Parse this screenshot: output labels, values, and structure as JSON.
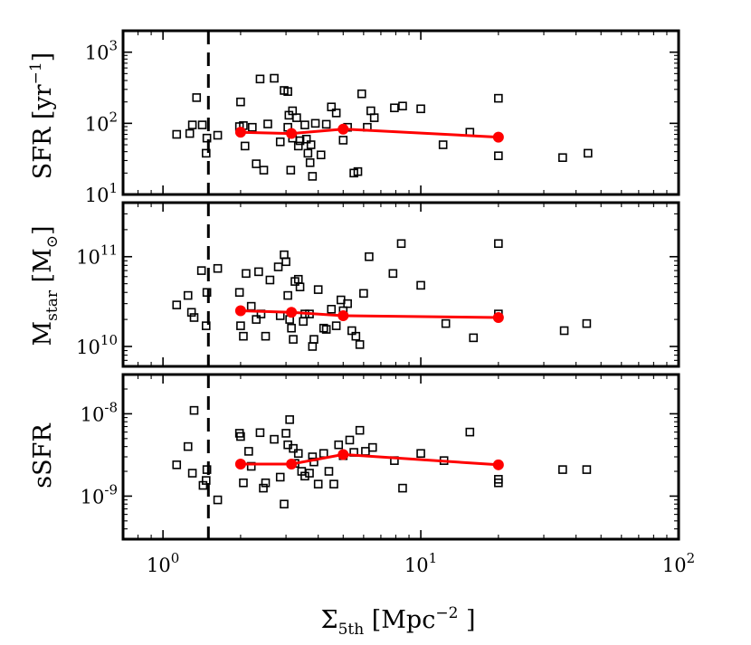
{
  "colors": {
    "median": "#ff0000",
    "points": "#000000"
  },
  "chart_data": {
    "type": "scatter",
    "x_scale": "log",
    "xlim": [
      0.7,
      100
    ],
    "xlabel_main": "Σ",
    "xlabel_sub": "5th",
    "xlabel_unit": " [Mpc",
    "xlabel_exp": "−2",
    "xlabel_close": " ]",
    "xticks": [
      {
        "value": 1,
        "base": "10",
        "exp": "0"
      },
      {
        "value": 10,
        "base": "10",
        "exp": "1"
      },
      {
        "value": 100,
        "base": "10",
        "exp": "2"
      }
    ],
    "threshold_x": 1.5,
    "median_x": [
      2.0,
      3.15,
      5.0,
      20.0
    ],
    "panels": [
      {
        "id": "sfr",
        "ylabel_main": "SFR [yr",
        "ylabel_exp": "−1",
        "ylabel_close": "]",
        "ylim": [
          10,
          2000
        ],
        "yticks": [
          {
            "value": 10,
            "base": "10",
            "exp": "1"
          },
          {
            "value": 100,
            "base": "10",
            "exp": "2"
          },
          {
            "value": 1000,
            "base": "10",
            "exp": "3"
          }
        ],
        "points": [
          [
            1.13,
            70
          ],
          [
            1.27,
            72
          ],
          [
            1.3,
            95
          ],
          [
            1.35,
            230
          ],
          [
            1.42,
            95
          ],
          [
            1.48,
            62
          ],
          [
            1.47,
            38
          ],
          [
            1.63,
            68
          ],
          [
            1.98,
            90
          ],
          [
            2.0,
            200
          ],
          [
            2.05,
            93
          ],
          [
            2.08,
            48
          ],
          [
            2.22,
            88
          ],
          [
            2.38,
            420
          ],
          [
            2.3,
            27
          ],
          [
            2.46,
            22
          ],
          [
            2.55,
            98
          ],
          [
            2.7,
            430
          ],
          [
            2.85,
            55
          ],
          [
            2.95,
            290
          ],
          [
            3.05,
            280
          ],
          [
            3.05,
            88
          ],
          [
            3.08,
            130
          ],
          [
            3.13,
            22
          ],
          [
            3.18,
            62
          ],
          [
            3.18,
            150
          ],
          [
            3.3,
            120
          ],
          [
            3.35,
            48
          ],
          [
            3.4,
            57
          ],
          [
            3.55,
            95
          ],
          [
            3.6,
            60
          ],
          [
            3.65,
            38
          ],
          [
            3.72,
            28
          ],
          [
            3.75,
            50
          ],
          [
            3.8,
            18
          ],
          [
            3.9,
            100
          ],
          [
            4.1,
            36
          ],
          [
            4.3,
            97
          ],
          [
            4.5,
            170
          ],
          [
            4.7,
            140
          ],
          [
            5.0,
            58
          ],
          [
            5.2,
            88
          ],
          [
            5.5,
            20
          ],
          [
            5.7,
            21
          ],
          [
            5.9,
            260
          ],
          [
            6.2,
            88
          ],
          [
            6.4,
            150
          ],
          [
            6.6,
            120
          ],
          [
            7.9,
            165
          ],
          [
            8.5,
            175
          ],
          [
            10.0,
            160
          ],
          [
            12.2,
            50
          ],
          [
            15.5,
            75
          ],
          [
            20.0,
            225
          ],
          [
            20.0,
            35
          ],
          [
            35.5,
            33
          ],
          [
            44.5,
            38
          ]
        ],
        "median_y": [
          75,
          72,
          83,
          64
        ]
      },
      {
        "id": "mstar",
        "ylabel_main": "M",
        "ylabel_sub": "star",
        "ylabel_close": " [M",
        "ylabel_sun": "⊙",
        "ylabel_end": "]",
        "ylim": [
          6000000000,
          400000000000
        ],
        "yticks": [
          {
            "value": 10000000000,
            "base": "10",
            "exp": "10"
          },
          {
            "value": 100000000000,
            "base": "10",
            "exp": "11"
          }
        ],
        "points": [
          [
            1.13,
            29000000000.0
          ],
          [
            1.25,
            37000000000.0
          ],
          [
            1.29,
            24000000000.0
          ],
          [
            1.32,
            21000000000.0
          ],
          [
            1.41,
            70000000000.0
          ],
          [
            1.48,
            40000000000.0
          ],
          [
            1.47,
            17000000000.0
          ],
          [
            1.63,
            74000000000.0
          ],
          [
            1.98,
            40000000000.0
          ],
          [
            2.0,
            17000000000.0
          ],
          [
            2.05,
            13000000000.0
          ],
          [
            2.1,
            65000000000.0
          ],
          [
            2.2,
            28000000000.0
          ],
          [
            2.3,
            20000000000.0
          ],
          [
            2.35,
            68000000000.0
          ],
          [
            2.4,
            23000000000.0
          ],
          [
            2.5,
            13000000000.0
          ],
          [
            2.6,
            55000000000.0
          ],
          [
            2.8,
            77000000000.0
          ],
          [
            2.85,
            22000000000.0
          ],
          [
            2.95,
            105000000000.0
          ],
          [
            3.0,
            88000000000.0
          ],
          [
            3.05,
            37000000000.0
          ],
          [
            3.1,
            20000000000.0
          ],
          [
            3.15,
            16000000000.0
          ],
          [
            3.2,
            12000000000.0
          ],
          [
            3.25,
            53000000000.0
          ],
          [
            3.35,
            56000000000.0
          ],
          [
            3.4,
            46000000000.0
          ],
          [
            3.5,
            19000000000.0
          ],
          [
            3.55,
            23000000000.0
          ],
          [
            3.7,
            23000000000.0
          ],
          [
            3.8,
            10000000000.0
          ],
          [
            3.85,
            12000000000.0
          ],
          [
            4.0,
            43000000000.0
          ],
          [
            4.2,
            16000000000.0
          ],
          [
            4.3,
            15500000000.0
          ],
          [
            4.5,
            26000000000.0
          ],
          [
            4.7,
            17000000000.0
          ],
          [
            4.9,
            33000000000.0
          ],
          [
            5.0,
            25000000000.0
          ],
          [
            5.2,
            30000000000.0
          ],
          [
            5.4,
            15000000000.0
          ],
          [
            5.6,
            13000000000.0
          ],
          [
            5.8,
            10500000000.0
          ],
          [
            6.0,
            39000000000.0
          ],
          [
            6.3,
            100000000000.0
          ],
          [
            7.8,
            65000000000.0
          ],
          [
            8.4,
            140000000000.0
          ],
          [
            10.0,
            48000000000.0
          ],
          [
            12.5,
            18000000000.0
          ],
          [
            16.0,
            12500000000.0
          ],
          [
            20.0,
            140000000000.0
          ],
          [
            20.0,
            23000000000.0
          ],
          [
            36.0,
            15000000000.0
          ],
          [
            44.0,
            18000000000.0
          ]
        ],
        "median_y": [
          25000000000.0,
          24000000000.0,
          22000000000.0,
          21000000000.0
        ]
      },
      {
        "id": "ssfr",
        "ylabel_main": "sSFR",
        "ylim": [
          3e-10,
          3e-08
        ],
        "yticks": [
          {
            "value": 1e-09,
            "base": "10",
            "exp": "-9"
          },
          {
            "value": 1e-08,
            "base": "10",
            "exp": "-8"
          }
        ],
        "points": [
          [
            1.13,
            2.4e-09
          ],
          [
            1.25,
            4e-09
          ],
          [
            1.3,
            1.9e-09
          ],
          [
            1.32,
            1.1e-08
          ],
          [
            1.43,
            1.35e-09
          ],
          [
            1.48,
            2.1e-09
          ],
          [
            1.47,
            1.55e-09
          ],
          [
            1.63,
            9e-10
          ],
          [
            1.98,
            5.8e-09
          ],
          [
            2.0,
            5.3e-09
          ],
          [
            2.05,
            1.45e-09
          ],
          [
            2.15,
            3.5e-09
          ],
          [
            2.2,
            2.3e-09
          ],
          [
            2.38,
            5.9e-09
          ],
          [
            2.45,
            1.25e-09
          ],
          [
            2.5,
            1.45e-09
          ],
          [
            2.7,
            4.9e-09
          ],
          [
            2.85,
            1.7e-09
          ],
          [
            2.95,
            8e-10
          ],
          [
            3.0,
            5.8e-09
          ],
          [
            3.05,
            4.2e-09
          ],
          [
            3.1,
            8.5e-09
          ],
          [
            3.2,
            3.8e-09
          ],
          [
            3.25,
            2.5e-09
          ],
          [
            3.35,
            3.3e-09
          ],
          [
            3.45,
            2e-09
          ],
          [
            3.55,
            1.75e-09
          ],
          [
            3.7,
            1.9e-09
          ],
          [
            3.8,
            3e-09
          ],
          [
            3.85,
            2.6e-09
          ],
          [
            4.0,
            1.4e-09
          ],
          [
            4.2,
            3.3e-09
          ],
          [
            4.4,
            2e-09
          ],
          [
            4.6,
            1.4e-09
          ],
          [
            4.8,
            4.2e-09
          ],
          [
            5.0,
            3.1e-09
          ],
          [
            5.3,
            4.8e-09
          ],
          [
            5.5,
            3.4e-09
          ],
          [
            5.8,
            6.3e-09
          ],
          [
            6.1,
            3.5e-09
          ],
          [
            6.5,
            3.9e-09
          ],
          [
            7.9,
            2.7e-09
          ],
          [
            8.5,
            1.25e-09
          ],
          [
            10.0,
            3.3e-09
          ],
          [
            12.3,
            2.7e-09
          ],
          [
            15.5,
            6e-09
          ],
          [
            20.0,
            1.6e-09
          ],
          [
            20.0,
            1.45e-09
          ],
          [
            35.5,
            2.1e-09
          ],
          [
            44.0,
            2.1e-09
          ]
        ],
        "median_y": [
          2.45e-09,
          2.45e-09,
          3.2e-09,
          2.4e-09
        ]
      }
    ]
  }
}
